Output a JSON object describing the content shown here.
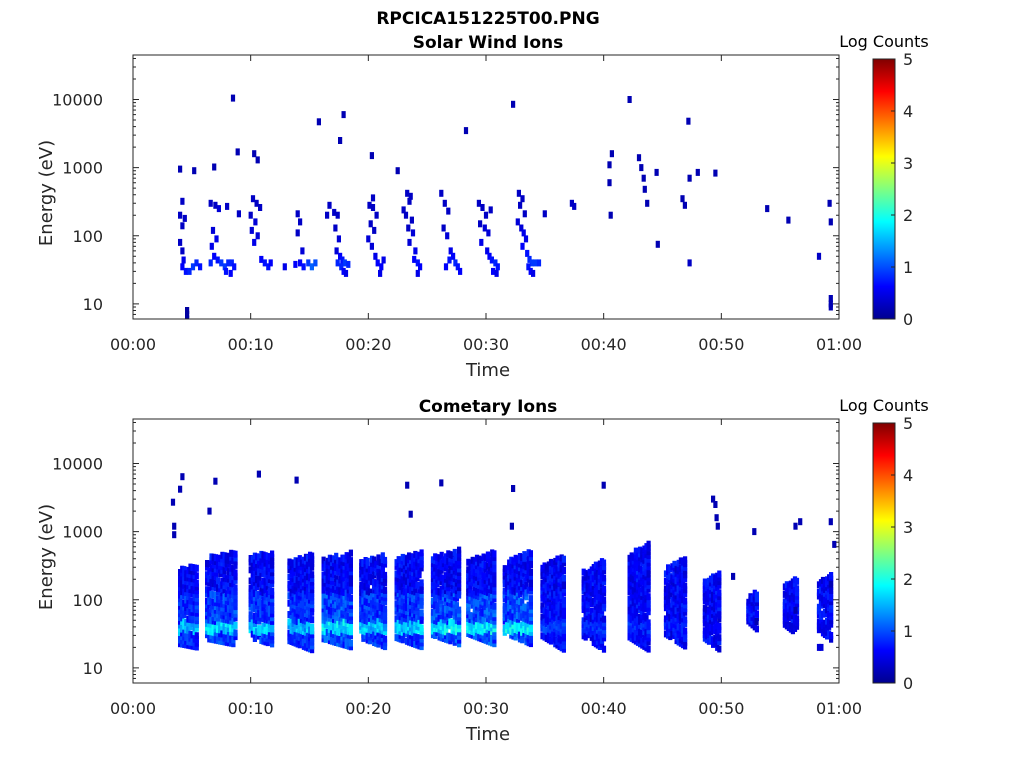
{
  "figure": {
    "title": "RPCICA151225T00.PNG"
  },
  "colormap": [
    "#00008f",
    "#0000ff",
    "#0080ff",
    "#00ffff",
    "#80ff80",
    "#ffff00",
    "#ff8000",
    "#ff0000",
    "#800000"
  ],
  "chart_data": [
    {
      "type": "heatmap",
      "title": "Solar Wind Ions",
      "xlabel": "Time",
      "ylabel": "Energy (eV)",
      "x_ticks": [
        "00:00",
        "00:10",
        "00:20",
        "00:30",
        "00:40",
        "00:50",
        "01:00"
      ],
      "xlim_minutes": [
        0,
        60
      ],
      "y_scale": "log",
      "y_ticks": [
        10,
        100,
        1000,
        10000
      ],
      "y_tick_labels": [
        "10",
        "100",
        "1000",
        "10000"
      ],
      "ylim": [
        6,
        45000
      ],
      "colorbar": {
        "label": "Log Counts",
        "ticks": [
          0,
          1,
          2,
          3,
          4,
          5
        ],
        "range": [
          0,
          5
        ]
      },
      "points": [
        [
          4.6,
          6,
          0.1
        ],
        [
          4.6,
          7,
          0.1
        ],
        [
          4.6,
          8,
          0.1
        ],
        [
          4.0,
          950,
          0.2
        ],
        [
          5.2,
          900,
          0.2
        ],
        [
          6.9,
          1020,
          0.2
        ],
        [
          8.5,
          10500,
          0.2
        ],
        [
          8.9,
          1700,
          0.2
        ],
        [
          10.3,
          1600,
          0.2
        ],
        [
          10.6,
          1300,
          0.2
        ],
        [
          15.8,
          4700,
          0.2
        ],
        [
          17.6,
          2500,
          0.2
        ],
        [
          17.9,
          6000,
          0.2
        ],
        [
          20.3,
          1500,
          0.2
        ],
        [
          28.3,
          3500,
          0.2
        ],
        [
          32.3,
          8500,
          0.2
        ],
        [
          4.2,
          320,
          0.3
        ],
        [
          4.0,
          200,
          0.3
        ],
        [
          4.4,
          180,
          0.3
        ],
        [
          4.2,
          140,
          0.3
        ],
        [
          4.0,
          80,
          0.3
        ],
        [
          4.2,
          60,
          0.3
        ],
        [
          4.3,
          44,
          0.5
        ],
        [
          4.2,
          35,
          0.6
        ],
        [
          4.5,
          30,
          0.7
        ],
        [
          4.8,
          30,
          0.8
        ],
        [
          5.1,
          35,
          0.9
        ],
        [
          5.4,
          40,
          0.8
        ],
        [
          5.7,
          35,
          0.7
        ],
        [
          6.6,
          300,
          0.3
        ],
        [
          7.0,
          280,
          0.3
        ],
        [
          7.3,
          250,
          0.4
        ],
        [
          6.8,
          120,
          0.4
        ],
        [
          7.1,
          90,
          0.5
        ],
        [
          6.7,
          70,
          0.5
        ],
        [
          6.9,
          50,
          0.6
        ],
        [
          7.2,
          44,
          0.7
        ],
        [
          6.6,
          40,
          0.8
        ],
        [
          7.5,
          40,
          0.9
        ],
        [
          7.8,
          35,
          0.9
        ],
        [
          8.1,
          40,
          0.8
        ],
        [
          8.4,
          40,
          0.8
        ],
        [
          8.6,
          35,
          0.7
        ],
        [
          7.9,
          30,
          0.7
        ],
        [
          8.3,
          28,
          0.6
        ],
        [
          9.0,
          210,
          0.3
        ],
        [
          8.0,
          270,
          0.3
        ],
        [
          10.2,
          350,
          0.3
        ],
        [
          10.5,
          300,
          0.3
        ],
        [
          10.0,
          200,
          0.3
        ],
        [
          10.4,
          160,
          0.4
        ],
        [
          10.1,
          120,
          0.4
        ],
        [
          10.6,
          100,
          0.4
        ],
        [
          10.3,
          80,
          0.5
        ],
        [
          10.9,
          45,
          0.6
        ],
        [
          11.2,
          40,
          0.7
        ],
        [
          11.5,
          35,
          0.7
        ],
        [
          11.7,
          40,
          0.6
        ],
        [
          10.8,
          260,
          0.3
        ],
        [
          12.9,
          35,
          0.5
        ],
        [
          13.8,
          38,
          0.6
        ],
        [
          14.2,
          40,
          0.6
        ],
        [
          14.5,
          35,
          0.7
        ],
        [
          14.9,
          40,
          0.9
        ],
        [
          15.2,
          35,
          1.1
        ],
        [
          15.5,
          40,
          1.0
        ],
        [
          14.0,
          210,
          0.3
        ],
        [
          14.2,
          160,
          0.3
        ],
        [
          14.0,
          110,
          0.3
        ],
        [
          14.4,
          60,
          0.4
        ],
        [
          16.7,
          280,
          0.3
        ],
        [
          17.1,
          220,
          0.3
        ],
        [
          17.4,
          200,
          0.3
        ],
        [
          17.2,
          130,
          0.3
        ],
        [
          17.5,
          90,
          0.4
        ],
        [
          17.3,
          60,
          0.4
        ],
        [
          17.6,
          50,
          0.6
        ],
        [
          17.8,
          44,
          0.7
        ],
        [
          17.4,
          40,
          0.8
        ],
        [
          18.0,
          40,
          0.9
        ],
        [
          18.3,
          38,
          0.8
        ],
        [
          17.7,
          35,
          0.8
        ],
        [
          17.9,
          30,
          0.6
        ],
        [
          18.1,
          28,
          0.5
        ],
        [
          16.5,
          200,
          0.3
        ],
        [
          20.1,
          280,
          0.3
        ],
        [
          20.4,
          260,
          0.3
        ],
        [
          20.7,
          200,
          0.3
        ],
        [
          20.2,
          150,
          0.3
        ],
        [
          20.5,
          120,
          0.3
        ],
        [
          20.0,
          90,
          0.4
        ],
        [
          20.3,
          70,
          0.4
        ],
        [
          20.6,
          50,
          0.5
        ],
        [
          20.8,
          40,
          0.6
        ],
        [
          21.1,
          35,
          0.6
        ],
        [
          21.0,
          28,
          0.5
        ],
        [
          21.3,
          44,
          0.5
        ],
        [
          22.5,
          900,
          0.2
        ],
        [
          20.4,
          360,
          0.3
        ],
        [
          23.3,
          420,
          0.3
        ],
        [
          23.6,
          380,
          0.3
        ],
        [
          23.5,
          320,
          0.3
        ],
        [
          23.2,
          200,
          0.3
        ],
        [
          23.7,
          170,
          0.3
        ],
        [
          23.4,
          130,
          0.3
        ],
        [
          23.8,
          110,
          0.4
        ],
        [
          23.5,
          80,
          0.4
        ],
        [
          24.0,
          60,
          0.5
        ],
        [
          23.9,
          45,
          0.6
        ],
        [
          24.2,
          40,
          0.7
        ],
        [
          24.4,
          35,
          0.6
        ],
        [
          24.2,
          28,
          0.5
        ],
        [
          23.0,
          240,
          0.3
        ],
        [
          26.2,
          420,
          0.3
        ],
        [
          26.5,
          300,
          0.3
        ],
        [
          26.8,
          230,
          0.3
        ],
        [
          26.4,
          130,
          0.3
        ],
        [
          26.7,
          100,
          0.4
        ],
        [
          27.0,
          60,
          0.5
        ],
        [
          27.2,
          50,
          0.6
        ],
        [
          26.9,
          44,
          0.7
        ],
        [
          27.4,
          40,
          0.8
        ],
        [
          27.6,
          35,
          0.7
        ],
        [
          27.8,
          30,
          0.6
        ],
        [
          26.6,
          35,
          0.6
        ],
        [
          29.4,
          300,
          0.3
        ],
        [
          29.7,
          260,
          0.3
        ],
        [
          30.0,
          200,
          0.3
        ],
        [
          29.5,
          150,
          0.3
        ],
        [
          29.9,
          130,
          0.4
        ],
        [
          30.2,
          110,
          0.4
        ],
        [
          29.6,
          80,
          0.5
        ],
        [
          30.1,
          60,
          0.5
        ],
        [
          30.3,
          50,
          0.6
        ],
        [
          30.5,
          44,
          0.7
        ],
        [
          30.8,
          40,
          0.8
        ],
        [
          31.0,
          35,
          0.7
        ],
        [
          30.6,
          30,
          0.6
        ],
        [
          30.9,
          28,
          0.5
        ],
        [
          30.4,
          240,
          0.3
        ],
        [
          32.8,
          420,
          0.3
        ],
        [
          33.1,
          350,
          0.3
        ],
        [
          32.9,
          280,
          0.3
        ],
        [
          33.3,
          210,
          0.3
        ],
        [
          32.7,
          160,
          0.4
        ],
        [
          33.0,
          130,
          0.4
        ],
        [
          33.2,
          110,
          0.5
        ],
        [
          33.4,
          90,
          0.5
        ],
        [
          33.1,
          70,
          0.6
        ],
        [
          33.5,
          55,
          0.7
        ],
        [
          33.7,
          45,
          0.8
        ],
        [
          33.9,
          40,
          0.9
        ],
        [
          34.2,
          40,
          0.9
        ],
        [
          34.5,
          40,
          0.8
        ],
        [
          33.6,
          35,
          0.7
        ],
        [
          33.8,
          30,
          0.6
        ],
        [
          34.0,
          28,
          0.5
        ],
        [
          35.0,
          210,
          0.3
        ],
        [
          37.3,
          300,
          0.3
        ],
        [
          37.5,
          270,
          0.3
        ],
        [
          40.5,
          1100,
          0.2
        ],
        [
          40.7,
          1600,
          0.2
        ],
        [
          40.6,
          200,
          0.2
        ],
        [
          40.5,
          600,
          0.2
        ],
        [
          42.2,
          10000,
          0.2
        ],
        [
          43.0,
          1400,
          0.2
        ],
        [
          43.2,
          1000,
          0.2
        ],
        [
          43.4,
          700,
          0.2
        ],
        [
          43.5,
          480,
          0.2
        ],
        [
          43.7,
          300,
          0.2
        ],
        [
          44.5,
          850,
          0.2
        ],
        [
          44.6,
          75,
          0.2
        ],
        [
          46.7,
          350,
          0.2
        ],
        [
          46.9,
          280,
          0.2
        ],
        [
          47.2,
          4800,
          0.2
        ],
        [
          47.3,
          700,
          0.2
        ],
        [
          47.3,
          40,
          0.3
        ],
        [
          48.0,
          850,
          0.2
        ],
        [
          49.5,
          830,
          0.2
        ],
        [
          53.9,
          250,
          0.2
        ],
        [
          55.7,
          170,
          0.2
        ],
        [
          58.3,
          50,
          0.3
        ],
        [
          59.2,
          300,
          0.2
        ],
        [
          59.3,
          160,
          0.2
        ],
        [
          59.3,
          10,
          0.2
        ],
        [
          59.3,
          12,
          0.2
        ],
        [
          59.3,
          9,
          0.2
        ]
      ]
    },
    {
      "type": "heatmap",
      "title": "Cometary Ions",
      "xlabel": "Time",
      "ylabel": "Energy (eV)",
      "x_ticks": [
        "00:00",
        "00:10",
        "00:20",
        "00:30",
        "00:40",
        "00:50",
        "01:00"
      ],
      "xlim_minutes": [
        0,
        60
      ],
      "y_scale": "log",
      "y_ticks": [
        10,
        100,
        1000,
        10000
      ],
      "y_tick_labels": [
        "10",
        "100",
        "1000",
        "10000"
      ],
      "ylim": [
        6,
        45000
      ],
      "colorbar": {
        "label": "Log Counts",
        "ticks": [
          0,
          1,
          2,
          3,
          4,
          5
        ],
        "range": [
          0,
          5
        ]
      },
      "bursts": [
        {
          "t": 4.0,
          "w": 1.6,
          "emin": 20,
          "emax": 320,
          "drift": 0.3,
          "peak": 1.6
        },
        {
          "t": 6.3,
          "w": 2.6,
          "emin": 22,
          "emax": 500,
          "drift": 0.5,
          "peak": 1.8
        },
        {
          "t": 10.0,
          "w": 2.0,
          "emin": 22,
          "emax": 520,
          "drift": 0.6,
          "peak": 1.7
        },
        {
          "t": 13.3,
          "w": 2.1,
          "emin": 18,
          "emax": 480,
          "drift": 0.8,
          "peak": 1.6
        },
        {
          "t": 16.2,
          "w": 2.5,
          "emin": 20,
          "emax": 500,
          "drift": 0.7,
          "peak": 1.9
        },
        {
          "t": 19.4,
          "w": 2.2,
          "emin": 20,
          "emax": 480,
          "drift": 0.8,
          "peak": 1.7
        },
        {
          "t": 22.4,
          "w": 2.3,
          "emin": 20,
          "emax": 520,
          "drift": 0.8,
          "peak": 1.7
        },
        {
          "t": 25.5,
          "w": 2.4,
          "emin": 22,
          "emax": 560,
          "drift": 0.8,
          "peak": 1.9
        },
        {
          "t": 28.5,
          "w": 2.4,
          "emin": 22,
          "emax": 520,
          "drift": 0.9,
          "peak": 1.9
        },
        {
          "t": 31.6,
          "w": 2.4,
          "emin": 22,
          "emax": 520,
          "drift": 1.0,
          "peak": 1.9
        },
        {
          "t": 34.8,
          "w": 2.0,
          "emin": 18,
          "emax": 470,
          "drift": 1.2,
          "peak": 1.0
        },
        {
          "t": 38.3,
          "w": 1.9,
          "emin": 18,
          "emax": 400,
          "drift": 1.2,
          "peak": 0.9
        },
        {
          "t": 42.2,
          "w": 1.8,
          "emin": 18,
          "emax": 700,
          "drift": 1.1,
          "peak": 0.9
        },
        {
          "t": 45.3,
          "w": 1.8,
          "emin": 20,
          "emax": 430,
          "drift": 1.1,
          "peak": 0.8
        },
        {
          "t": 48.6,
          "w": 1.4,
          "emin": 18,
          "emax": 260,
          "drift": 1.0,
          "peak": 0.6
        },
        {
          "t": 52.3,
          "w": 0.9,
          "emin": 35,
          "emax": 140,
          "drift": 0.8,
          "peak": 0.5
        },
        {
          "t": 55.4,
          "w": 1.2,
          "emin": 30,
          "emax": 220,
          "drift": 0.9,
          "peak": 0.5
        },
        {
          "t": 58.3,
          "w": 1.2,
          "emin": 25,
          "emax": 240,
          "drift": 0.9,
          "peak": 0.5
        }
      ],
      "points": [
        [
          3.4,
          2700,
          0.2
        ],
        [
          3.5,
          1200,
          0.2
        ],
        [
          3.5,
          900,
          0.2
        ],
        [
          4.0,
          4200,
          0.2
        ],
        [
          4.2,
          6400,
          0.2
        ],
        [
          6.5,
          2000,
          0.2
        ],
        [
          7.0,
          5500,
          0.2
        ],
        [
          10.7,
          7000,
          0.2
        ],
        [
          13.9,
          5700,
          0.2
        ],
        [
          23.3,
          4800,
          0.2
        ],
        [
          23.6,
          1800,
          0.2
        ],
        [
          26.2,
          5200,
          0.2
        ],
        [
          32.3,
          4300,
          0.2
        ],
        [
          32.2,
          1200,
          0.2
        ],
        [
          40.0,
          4800,
          0.2
        ],
        [
          49.3,
          3000,
          0.2
        ],
        [
          49.5,
          2500,
          0.2
        ],
        [
          49.6,
          1600,
          0.2
        ],
        [
          49.7,
          1200,
          0.2
        ],
        [
          52.8,
          1000,
          0.2
        ],
        [
          56.3,
          1200,
          0.2
        ],
        [
          56.7,
          1400,
          0.2
        ],
        [
          59.3,
          1400,
          0.2
        ],
        [
          59.6,
          650,
          0.2
        ],
        [
          51.0,
          220,
          0.2
        ],
        [
          53.0,
          48,
          0.2
        ],
        [
          56.3,
          70,
          0.2
        ],
        [
          58.3,
          20,
          0.4
        ],
        [
          58.5,
          20,
          0.4
        ],
        [
          59.3,
          170,
          0.2
        ]
      ]
    }
  ]
}
